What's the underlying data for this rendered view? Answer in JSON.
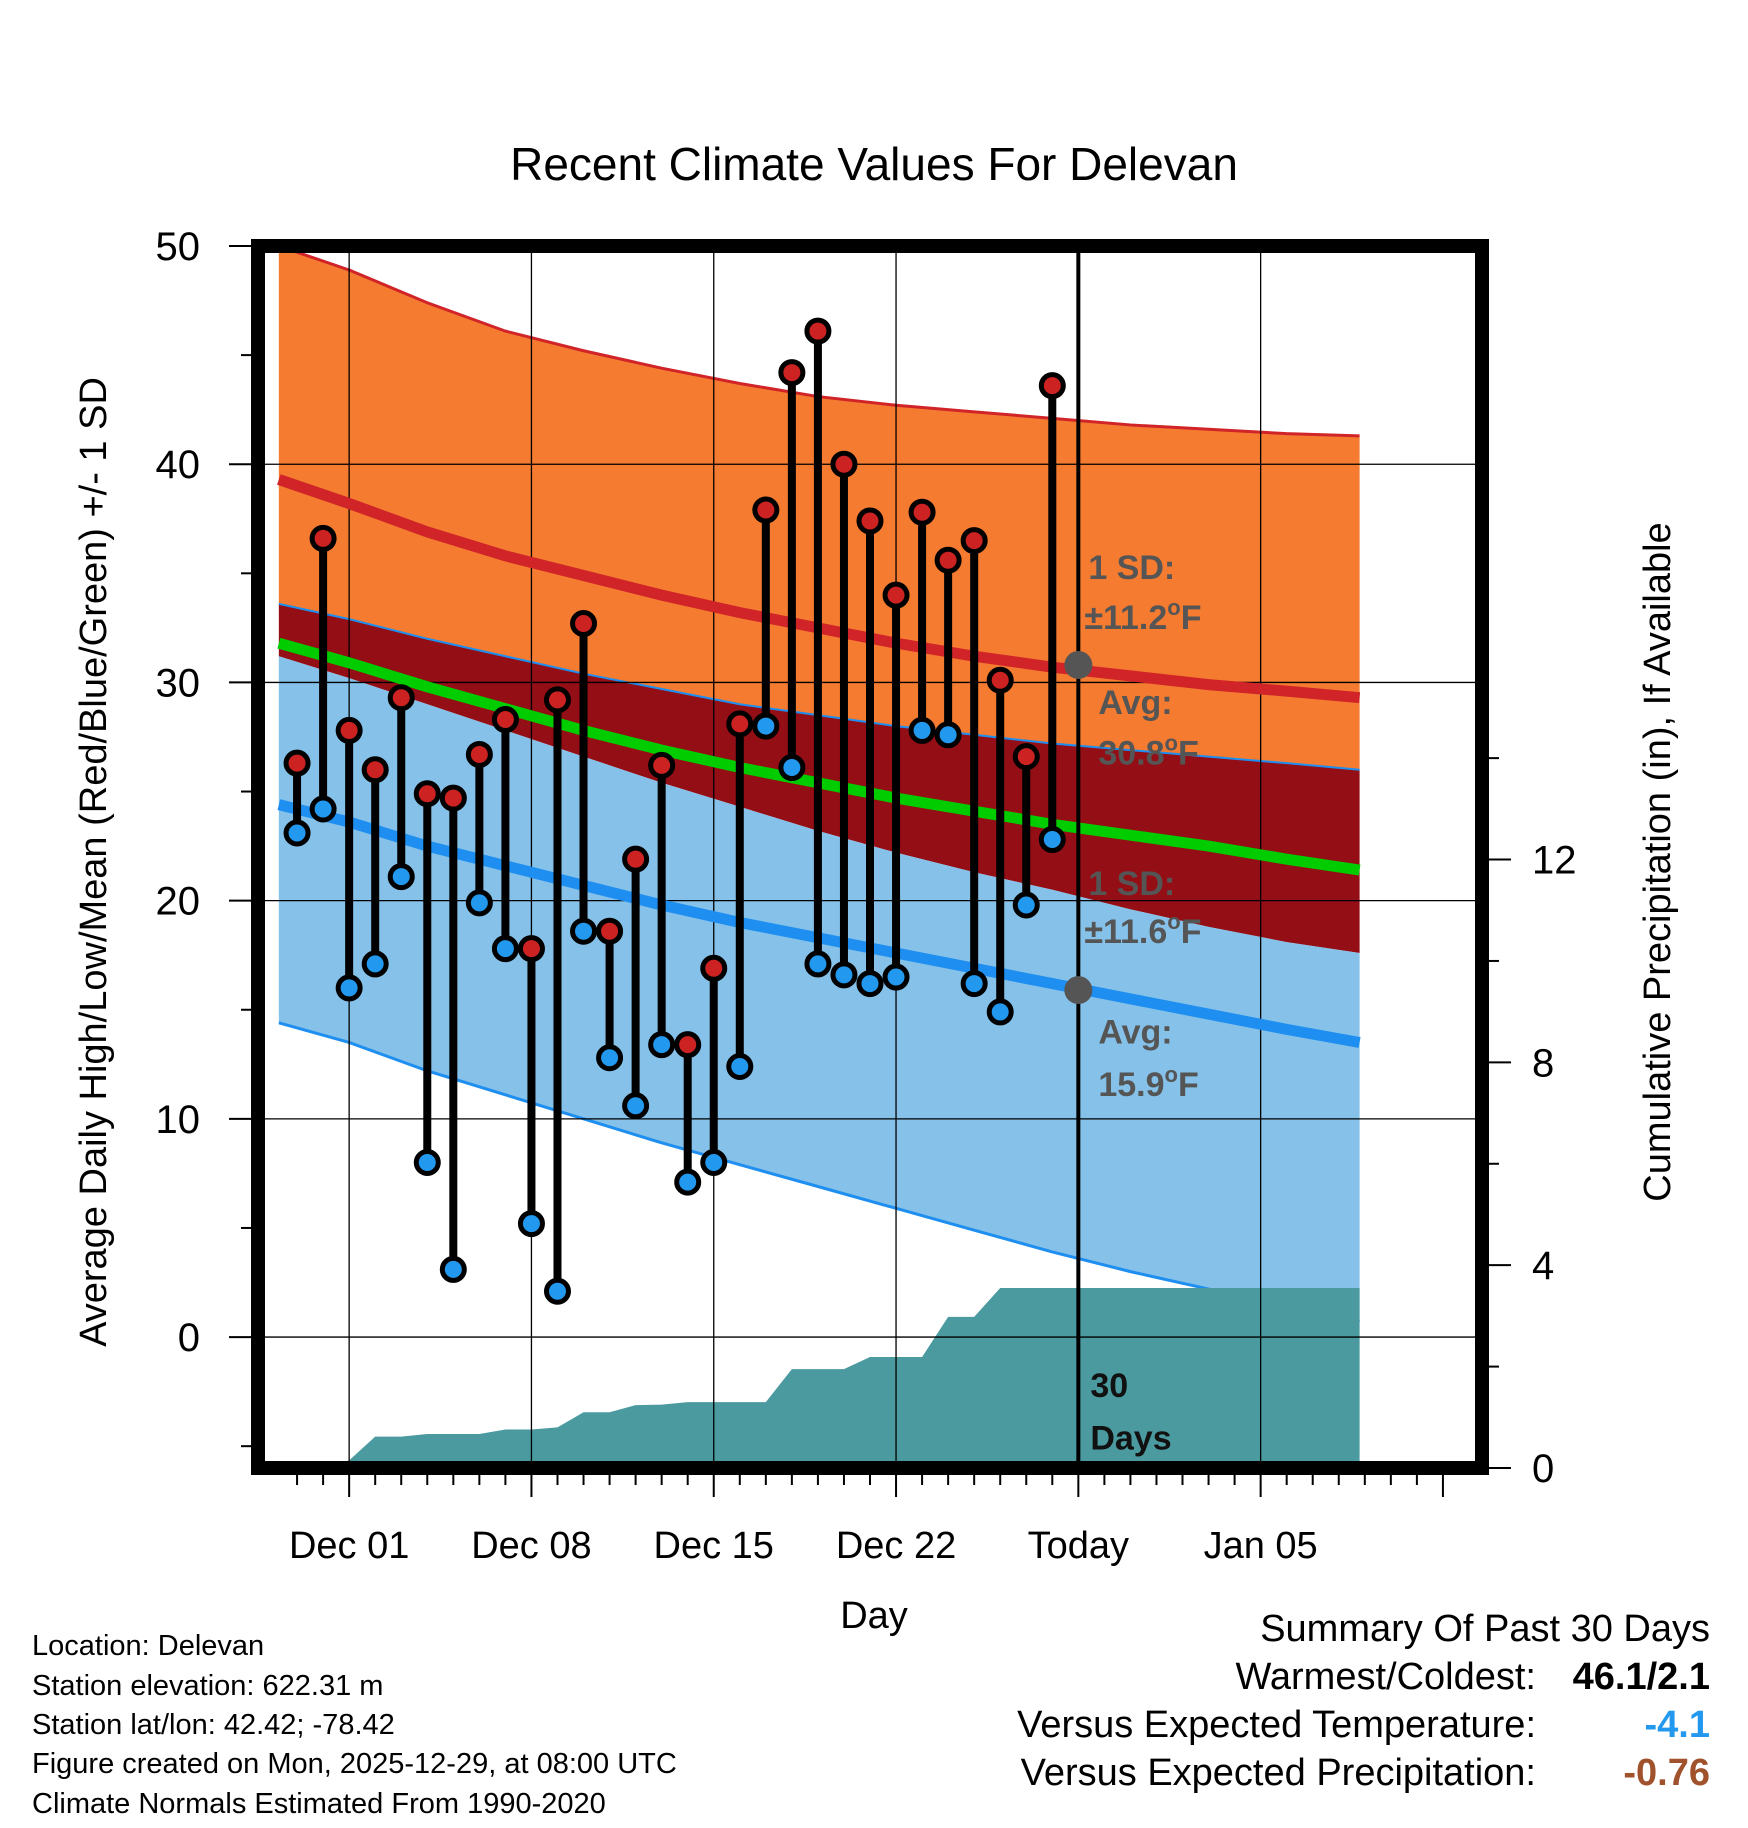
{
  "chart_data": {
    "type": "line",
    "title": "Recent Climate Values For Delevan",
    "xlabel": "Day",
    "ylabel": "Average Daily High/Low/Mean (Red/Blue/Green) +/- 1 SD",
    "y2label": "Cumulative Precipitation (in), If Available",
    "x_range": [
      -3.5,
      43.5
    ],
    "ylim": [
      -6,
      50
    ],
    "y_ticks": [
      0,
      10,
      20,
      30,
      40,
      50
    ],
    "y2lim": [
      0,
      24.1
    ],
    "y2_ticks": [
      0,
      4,
      8,
      12
    ],
    "x_ticks": [
      {
        "x": 0,
        "label": "Dec 01"
      },
      {
        "x": 7,
        "label": "Dec 08"
      },
      {
        "x": 14,
        "label": "Dec 15"
      },
      {
        "x": 21,
        "label": "Dec 22"
      },
      {
        "x": 28,
        "label": "Today"
      },
      {
        "x": 35,
        "label": "Jan 05"
      }
    ],
    "normals_x": [
      -2.7,
      0,
      3,
      6,
      9,
      12,
      15,
      18,
      21,
      24,
      27,
      30,
      33,
      36,
      38.8
    ],
    "normal_high": [
      39.3,
      38.2,
      36.9,
      35.8,
      34.9,
      34.0,
      33.2,
      32.5,
      31.8,
      31.2,
      30.7,
      30.3,
      29.9,
      29.6,
      29.3
    ],
    "normal_high_upper": [
      50.0,
      48.9,
      47.4,
      46.1,
      45.2,
      44.4,
      43.7,
      43.1,
      42.7,
      42.4,
      42.1,
      41.8,
      41.6,
      41.4,
      41.3
    ],
    "normal_high_lower": [
      33.6,
      32.9,
      32.0,
      31.2,
      30.4,
      29.7,
      29.0,
      28.5,
      28.0,
      27.6,
      27.2,
      26.9,
      26.6,
      26.3,
      26.0
    ],
    "normal_mean": [
      31.8,
      30.9,
      29.8,
      28.8,
      27.8,
      26.9,
      26.1,
      25.4,
      24.7,
      24.1,
      23.5,
      23.0,
      22.5,
      21.9,
      21.4
    ],
    "normal_low": [
      24.4,
      23.6,
      22.5,
      21.6,
      20.7,
      19.8,
      19.0,
      18.3,
      17.6,
      16.9,
      16.2,
      15.5,
      14.8,
      14.1,
      13.5
    ],
    "normal_low_upper": [
      31.2,
      30.2,
      29.0,
      27.8,
      26.6,
      25.4,
      24.3,
      23.2,
      22.2,
      21.3,
      20.5,
      19.6,
      18.8,
      18.1,
      17.6
    ],
    "normal_low_lower": [
      14.4,
      13.5,
      12.2,
      11.1,
      10.0,
      8.9,
      7.9,
      6.9,
      5.9,
      4.9,
      3.9,
      3.0,
      2.2,
      1.4,
      0.7
    ],
    "series": [
      {
        "name": "Daily High",
        "color": "#cc2222",
        "x": [
          -2,
          -1,
          0,
          1,
          2,
          3,
          4,
          5,
          6,
          7,
          8,
          9,
          10,
          11,
          12,
          13,
          14,
          15,
          16,
          17,
          18,
          19,
          20,
          21,
          22,
          23,
          24,
          25,
          26,
          27
        ],
        "values": [
          26.3,
          36.6,
          27.8,
          26.0,
          29.3,
          24.9,
          24.7,
          26.7,
          28.3,
          17.8,
          29.2,
          32.7,
          18.6,
          21.9,
          26.2,
          13.4,
          16.9,
          28.1,
          37.9,
          44.2,
          46.1,
          40.0,
          37.4,
          34.0,
          37.8,
          35.6,
          36.5,
          30.1,
          26.6,
          43.6
        ]
      },
      {
        "name": "Daily Low",
        "color": "#2299ee",
        "x": [
          -2,
          -1,
          0,
          1,
          2,
          3,
          4,
          5,
          6,
          7,
          8,
          9,
          10,
          11,
          12,
          13,
          14,
          15,
          16,
          17,
          18,
          19,
          20,
          21,
          22,
          23,
          24,
          25,
          26,
          27
        ],
        "values": [
          23.1,
          24.2,
          16.0,
          17.1,
          21.1,
          8.0,
          3.1,
          19.9,
          17.8,
          5.2,
          2.1,
          18.6,
          12.8,
          10.6,
          13.4,
          7.1,
          8.0,
          12.4,
          28.0,
          26.1,
          17.1,
          16.6,
          16.2,
          16.5,
          27.8,
          27.6,
          16.2,
          14.9,
          19.8,
          22.8
        ]
      }
    ],
    "precip_x": [
      -2.7,
      -1,
      0,
      1,
      2,
      3,
      4,
      5,
      6,
      7,
      8,
      9,
      10,
      11,
      12,
      13,
      14,
      15,
      16,
      17,
      18,
      19,
      20,
      21,
      22,
      23,
      24,
      25,
      26,
      27,
      28,
      38.8
    ],
    "precip_cum": [
      0,
      0,
      0.15,
      0.62,
      0.62,
      0.67,
      0.67,
      0.67,
      0.76,
      0.76,
      0.8,
      1.1,
      1.1,
      1.24,
      1.25,
      1.3,
      1.3,
      1.3,
      1.3,
      1.95,
      1.95,
      1.95,
      2.19,
      2.19,
      2.19,
      2.98,
      2.98,
      3.55,
      3.55,
      3.55,
      3.55,
      3.55
    ],
    "annotations": {
      "high_sd_line1": "1 SD:",
      "high_sd_line2": "±11.2",
      "high_avg_line1": "Avg:",
      "high_avg_line2": "30.8",
      "low_sd_line1": "1 SD:",
      "low_sd_line2": "±11.6",
      "low_avg_line1": "Avg:",
      "low_avg_line2": "15.9",
      "degree_mark": "o",
      "unit": "F",
      "days_line1": "30",
      "days_line2": "Days"
    },
    "today_high_avg": 30.8,
    "today_low_avg": 15.9,
    "colors": {
      "high_band": "#f47b30",
      "high_line": "#d02428",
      "mid_band": "#930e15",
      "mean_line": "#00cc00",
      "low_band": "#85c1e8",
      "low_line": "#1e8ff0",
      "precip": "#4a9aa0",
      "annotation": "#555555"
    }
  },
  "info": {
    "location": "Location: Delevan",
    "elevation": "Station elevation: 622.31 m",
    "latlon": "Station lat/lon: 42.42; -78.42",
    "created": "Figure created on Mon, 2025-12-29, at 08:00 UTC",
    "normals": "Climate Normals Estimated From 1990-2020"
  },
  "summary": {
    "title": "Summary Of Past 30 Days",
    "warm_cold_label": "Warmest/Coldest:",
    "warm_cold_value": "46.1/2.1",
    "temp_label": "Versus Expected Temperature:",
    "temp_value": "-4.1",
    "temp_color": "#2299ee",
    "precip_label": "Versus Expected Precipitation:",
    "precip_value": "-0.76",
    "precip_color": "#a0522d"
  }
}
